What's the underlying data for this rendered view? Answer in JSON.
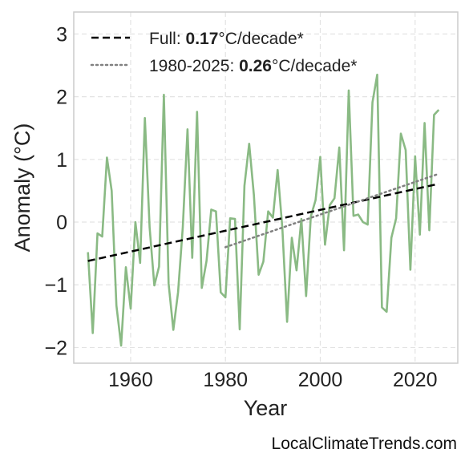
{
  "chart_data": {
    "type": "line",
    "xlabel": "Year",
    "ylabel": "Anomaly (°C)",
    "xlim": [
      1948,
      2029
    ],
    "ylim": [
      -2.25,
      3.35
    ],
    "x_ticks": [
      1960,
      1980,
      2000,
      2020
    ],
    "x_tick_labels": [
      "1960",
      "1980",
      "2000",
      "2020"
    ],
    "y_ticks": [
      -2,
      -1,
      0,
      1,
      2,
      3
    ],
    "y_tick_labels": [
      "−2",
      "−1",
      "0",
      "1",
      "2",
      "3"
    ],
    "grid": true,
    "legend_position": "top-left",
    "series": [
      {
        "style": "solid",
        "color": "#8aba84",
        "x": [
          1951,
          1952,
          1953,
          1954,
          1955,
          1956,
          1957,
          1958,
          1959,
          1960,
          1961,
          1962,
          1963,
          1964,
          1965,
          1966,
          1967,
          1968,
          1969,
          1970,
          1971,
          1972,
          1973,
          1974,
          1975,
          1976,
          1977,
          1978,
          1979,
          1980,
          1981,
          1982,
          1983,
          1984,
          1985,
          1986,
          1987,
          1988,
          1989,
          1990,
          1991,
          1992,
          1993,
          1994,
          1995,
          1996,
          1997,
          1998,
          1999,
          2000,
          2001,
          2002,
          2003,
          2004,
          2005,
          2006,
          2007,
          2008,
          2009,
          2010,
          2011,
          2012,
          2013,
          2014,
          2015,
          2016,
          2017,
          2018,
          2019,
          2020,
          2021,
          2022,
          2023,
          2024,
          2025
        ],
        "y": [
          -0.48,
          -1.77,
          -0.18,
          -0.23,
          1.03,
          0.5,
          -1.33,
          -1.97,
          -0.72,
          -1.38,
          0.0,
          -0.65,
          1.66,
          -0.08,
          -1.01,
          -0.71,
          2.03,
          -0.98,
          -1.72,
          -1.12,
          -0.08,
          1.48,
          -0.57,
          1.76,
          -1.05,
          -0.62,
          0.2,
          0.17,
          -1.12,
          -1.2,
          0.06,
          0.05,
          -1.71,
          0.58,
          1.25,
          0.43,
          -0.84,
          -0.63,
          0.17,
          0.07,
          0.83,
          -0.1,
          -1.59,
          -0.25,
          -0.77,
          0.05,
          -1.18,
          0.09,
          0.35,
          1.04,
          -0.36,
          0.27,
          0.38,
          1.19,
          -0.45,
          2.1,
          0.1,
          0.12,
          0.0,
          -0.04,
          1.91,
          2.35,
          -1.36,
          -1.43,
          -0.25,
          0.06,
          1.41,
          1.15,
          -0.76,
          1.05,
          -0.2,
          1.58,
          -0.13,
          1.71,
          1.79
        ]
      },
      {
        "name": "Full",
        "style": "dashed",
        "color": "#000000",
        "x": [
          1951,
          2025
        ],
        "y": [
          -0.62,
          0.61
        ],
        "trend_value": "0.17",
        "trend_unit": "°C/decade*"
      },
      {
        "name": "1980-2025",
        "style": "dotted",
        "color": "#808080",
        "x": [
          1980,
          2025
        ],
        "y": [
          -0.4,
          0.77
        ],
        "trend_value": "0.26",
        "trend_unit": "°C/decade*"
      }
    ],
    "watermark": "LocalClimateTrends.com"
  }
}
